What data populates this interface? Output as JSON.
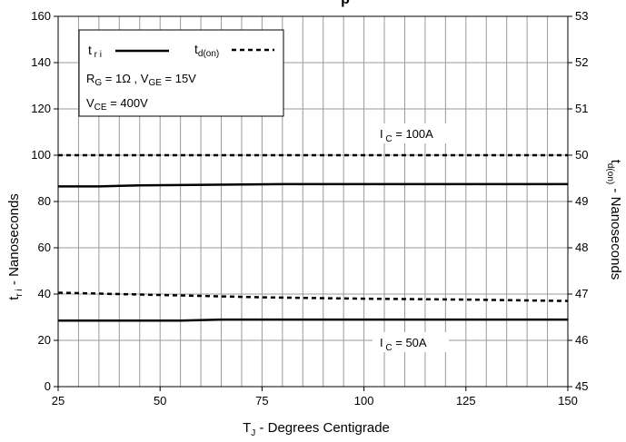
{
  "chart_data": {
    "type": "line",
    "title_fragment": "p",
    "xlabel": "T_J - Degrees Centigrade",
    "ylabel_left": "t_ri - Nanoseconds",
    "ylabel_right": "t_d(on) - Nanoseconds",
    "xlim": [
      25,
      150
    ],
    "ylim_left": [
      0,
      160
    ],
    "ylim_right": [
      45,
      53
    ],
    "x_ticks": [
      "25",
      "50",
      "75",
      "100",
      "125",
      "150"
    ],
    "y_ticks_left": [
      "0",
      "20",
      "40",
      "60",
      "80",
      "100",
      "120",
      "140",
      "160"
    ],
    "y_ticks_right": [
      "45",
      "46",
      "47",
      "48",
      "49",
      "50",
      "51",
      "52",
      "53"
    ],
    "grid": true,
    "legend": {
      "placement": "top-left",
      "series_tri": "t_ri",
      "series_tdon": "t_d(on)",
      "line1": "R_G = 1Ω ,  V_GE = 15V",
      "line2": "V_CE = 400V"
    },
    "annotations": {
      "ic_100": "I_C = 100A",
      "ic_50": "I_C = 50A"
    },
    "series": [
      {
        "name": "t_ri",
        "axis": "left",
        "condition": "I_C = 100A",
        "style": "solid",
        "x": [
          25,
          35,
          45,
          80,
          150
        ],
        "y": [
          86.5,
          86.5,
          87,
          87.5,
          87.5
        ]
      },
      {
        "name": "t_ri",
        "axis": "left",
        "condition": "I_C = 50A",
        "style": "solid",
        "x": [
          25,
          55,
          65,
          150
        ],
        "y": [
          28.5,
          28.5,
          29,
          29
        ]
      },
      {
        "name": "t_d(on)",
        "axis": "right",
        "condition": "I_C = 100A",
        "style": "dotted",
        "x": [
          25,
          150
        ],
        "y": [
          50,
          50
        ]
      },
      {
        "name": "t_d(on)",
        "axis": "right",
        "condition": "I_C = 50A",
        "style": "dotted",
        "x": [
          25,
          50,
          75,
          100,
          125,
          150
        ],
        "y": [
          47.03,
          46.98,
          46.93,
          46.9,
          46.88,
          46.85
        ]
      }
    ]
  }
}
